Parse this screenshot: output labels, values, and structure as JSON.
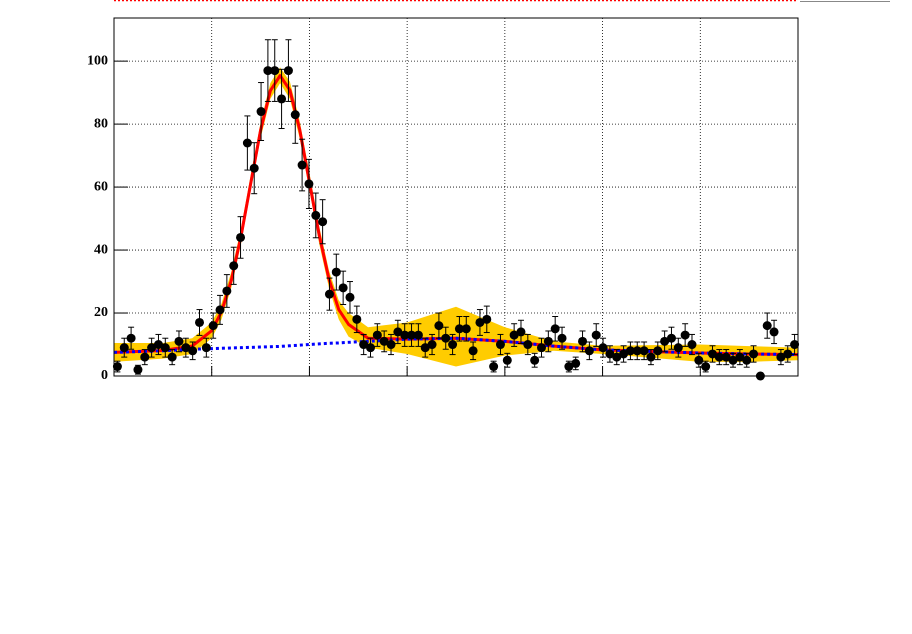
{
  "chart_data": {
    "type": "scatter",
    "xlim": [
      0,
      7
    ],
    "xticks": [
      1,
      2,
      3,
      4,
      5,
      6
    ],
    "ylim": [
      0,
      113.7
    ],
    "yticks": [
      0,
      20,
      40,
      60,
      80,
      100
    ],
    "grid": true,
    "series": [
      {
        "style": "band",
        "color": "#ffcc00",
        "x": [
          0,
          0.5,
          0.8,
          1.0,
          1.1,
          1.2,
          1.3,
          1.4,
          1.5,
          1.6,
          1.7,
          1.8,
          1.9,
          2.0,
          2.1,
          2.2,
          2.3,
          2.4,
          2.6,
          3.0,
          3.5,
          4.0,
          4.5,
          5.0,
          5.5,
          6.0,
          6.5,
          7.0
        ],
        "low": [
          4.5,
          5.5,
          7,
          12,
          18,
          28,
          42,
          59,
          75.5,
          88,
          93,
          88,
          75.5,
          59,
          42,
          28,
          18,
          12.5,
          9,
          7,
          3,
          6.5,
          8,
          7,
          5.8,
          4.5,
          4.5,
          5
        ],
        "high": [
          10.5,
          10.5,
          12,
          17,
          23,
          33,
          47,
          64,
          80.5,
          93,
          98,
          93.5,
          81,
          64.5,
          47.5,
          33.5,
          24,
          20,
          15.5,
          17,
          22,
          15.5,
          11,
          9.6,
          9.8,
          10,
          9.5,
          9
        ]
      },
      {
        "style": "line",
        "color": "#ff0000",
        "x": [
          0,
          0.5,
          0.8,
          1.0,
          1.1,
          1.2,
          1.3,
          1.4,
          1.5,
          1.6,
          1.7,
          1.8,
          1.9,
          2.0,
          2.1,
          2.2,
          2.3,
          2.4,
          2.6,
          3.0,
          3.5,
          4.0,
          4.5,
          5.0,
          5.5,
          6.0,
          6.5,
          7.0
        ],
        "values": [
          7.5,
          8.1,
          9.5,
          14.4,
          20.4,
          30.3,
          44.4,
          61.3,
          78,
          90.6,
          95.4,
          90.8,
          78.3,
          61.6,
          44.8,
          30.8,
          21.1,
          16.4,
          12,
          11.7,
          12,
          11,
          9.5,
          8.3,
          7.8,
          7.3,
          7,
          6.8
        ]
      },
      {
        "style": "dotted",
        "color": "#0000ff",
        "x": [
          0,
          0.5,
          0.8,
          1.0,
          1.1,
          1.2,
          1.3,
          1.4,
          1.5,
          1.6,
          1.7,
          1.8,
          1.9,
          2.0,
          2.1,
          2.2,
          2.3,
          2.4,
          2.6,
          3.0,
          3.5,
          4.0,
          4.5,
          5.0,
          5.5,
          6.0,
          6.5,
          7.0
        ],
        "values": [
          7.5,
          8.0,
          8.5,
          8.7,
          8.8,
          8.9,
          9.0,
          9.1,
          9.2,
          9.3,
          9.4,
          9.6,
          9.8,
          10.0,
          10.2,
          10.4,
          10.5,
          10.7,
          11,
          11.7,
          12,
          11,
          9.5,
          8.3,
          7.8,
          7.3,
          7,
          6.8
        ]
      },
      {
        "style": "points",
        "color": "#000000",
        "x": [
          0.035,
          0.105,
          0.175,
          0.245,
          0.315,
          0.385,
          0.455,
          0.525,
          0.595,
          0.665,
          0.735,
          0.805,
          0.875,
          0.945,
          1.015,
          1.085,
          1.155,
          1.225,
          1.295,
          1.365,
          1.435,
          1.505,
          1.575,
          1.645,
          1.715,
          1.785,
          1.855,
          1.925,
          1.995,
          2.065,
          2.135,
          2.205,
          2.275,
          2.345,
          2.415,
          2.485,
          2.555,
          2.625,
          2.695,
          2.765,
          2.835,
          2.905,
          2.975,
          3.045,
          3.115,
          3.185,
          3.255,
          3.325,
          3.395,
          3.465,
          3.535,
          3.605,
          3.675,
          3.745,
          3.815,
          3.885,
          3.955,
          4.025,
          4.095,
          4.165,
          4.235,
          4.305,
          4.375,
          4.445,
          4.515,
          4.585,
          4.655,
          4.725,
          4.795,
          4.865,
          4.935,
          5.005,
          5.075,
          5.145,
          5.215,
          5.285,
          5.355,
          5.425,
          5.495,
          5.565,
          5.635,
          5.705,
          5.775,
          5.845,
          5.915,
          5.985,
          6.055,
          6.125,
          6.195,
          6.265,
          6.335,
          6.405,
          6.475,
          6.545,
          6.615,
          6.685,
          6.755,
          6.825,
          6.895,
          6.965
        ],
        "values": [
          3,
          9,
          12,
          2,
          6,
          9,
          10,
          9,
          6,
          11,
          9,
          8,
          17,
          9,
          16,
          21,
          27,
          35,
          44,
          74,
          66,
          84,
          97,
          97,
          88,
          97,
          83,
          67,
          61,
          51,
          49,
          26,
          33,
          28,
          25,
          18,
          10,
          9,
          13,
          11,
          10,
          14,
          13,
          13,
          13,
          9,
          10,
          16,
          12,
          10,
          15,
          15,
          8,
          17,
          18,
          3,
          10,
          5,
          13,
          14,
          10,
          5,
          9,
          11,
          15,
          12,
          3,
          4,
          11,
          8,
          13,
          9,
          7,
          6,
          7,
          8,
          8,
          8,
          6,
          8,
          11,
          12,
          9,
          13,
          10,
          5,
          3,
          7,
          6,
          6,
          5,
          6,
          5,
          7,
          0,
          16,
          14,
          6,
          7,
          10
        ],
        "errors": [
          1.7,
          3,
          3.5,
          1.4,
          2.4,
          3,
          3.2,
          3,
          2.4,
          3.3,
          3,
          2.8,
          4.1,
          3,
          4,
          4.6,
          5.2,
          5.9,
          6.6,
          8.6,
          8.1,
          9.2,
          9.8,
          9.8,
          9.4,
          9.8,
          9.1,
          8.2,
          7.8,
          7.1,
          7,
          5.1,
          5.7,
          5.3,
          5,
          4.2,
          3.2,
          3,
          3.6,
          3.3,
          3.2,
          3.7,
          3.6,
          3.6,
          3.6,
          3,
          3.2,
          4,
          3.5,
          3.2,
          3.9,
          3.9,
          2.8,
          4.1,
          4.2,
          1.7,
          3.2,
          2.2,
          3.6,
          3.7,
          3.2,
          2.2,
          3,
          3.3,
          3.9,
          3.5,
          1.7,
          2,
          3.3,
          2.8,
          3.6,
          3,
          2.6,
          2.4,
          2.6,
          2.8,
          2.8,
          2.8,
          2.4,
          2.8,
          3.3,
          3.5,
          3,
          3.6,
          3.2,
          2.2,
          1.7,
          2.6,
          2.4,
          2.4,
          2.2,
          2.4,
          2.2,
          2.6,
          0,
          4,
          3.7,
          2.4,
          2.6,
          3.2
        ]
      }
    ]
  }
}
